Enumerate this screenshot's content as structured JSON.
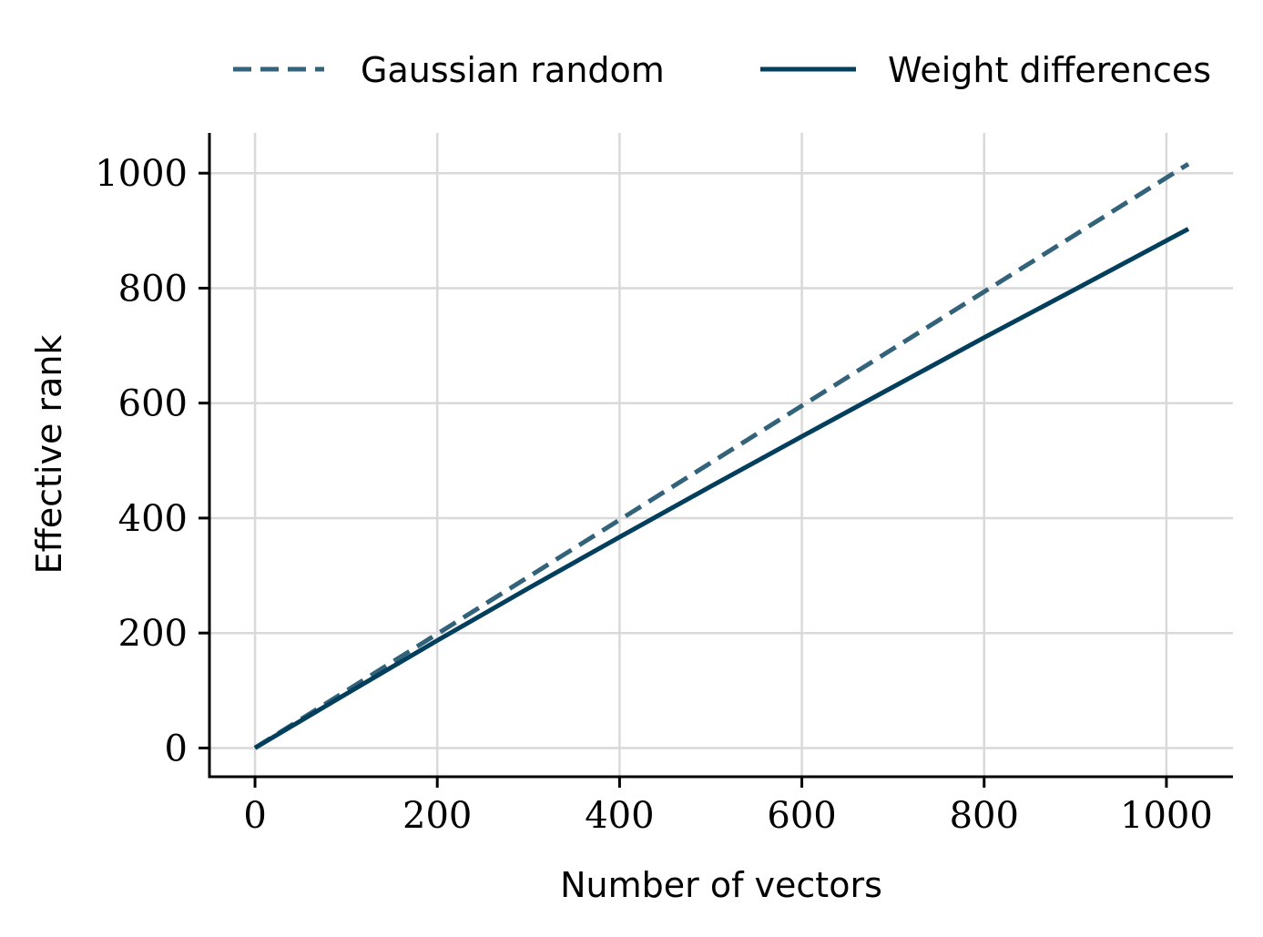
{
  "chart_data": {
    "type": "line",
    "xlabel": "Number of vectors",
    "ylabel": "Effective rank",
    "xlim": [
      -50,
      1073
    ],
    "ylim": [
      -50,
      1070
    ],
    "xticks": [
      0,
      200,
      400,
      600,
      800,
      1000
    ],
    "yticks": [
      0,
      200,
      400,
      600,
      800,
      1000
    ],
    "grid": true,
    "legend_position": "top",
    "series": [
      {
        "name": "Gaussian random",
        "style": "dashed",
        "color": "#33627b",
        "x": [
          0,
          1024
        ],
        "y": [
          0,
          1016
        ]
      },
      {
        "name": "Weight differences",
        "style": "solid",
        "color": "#023f5d",
        "x": [
          0,
          100,
          200,
          300,
          400,
          500,
          600,
          700,
          800,
          900,
          1024
        ],
        "y": [
          0,
          94,
          187,
          278,
          367,
          455,
          542,
          628,
          714,
          798,
          903
        ]
      }
    ]
  }
}
